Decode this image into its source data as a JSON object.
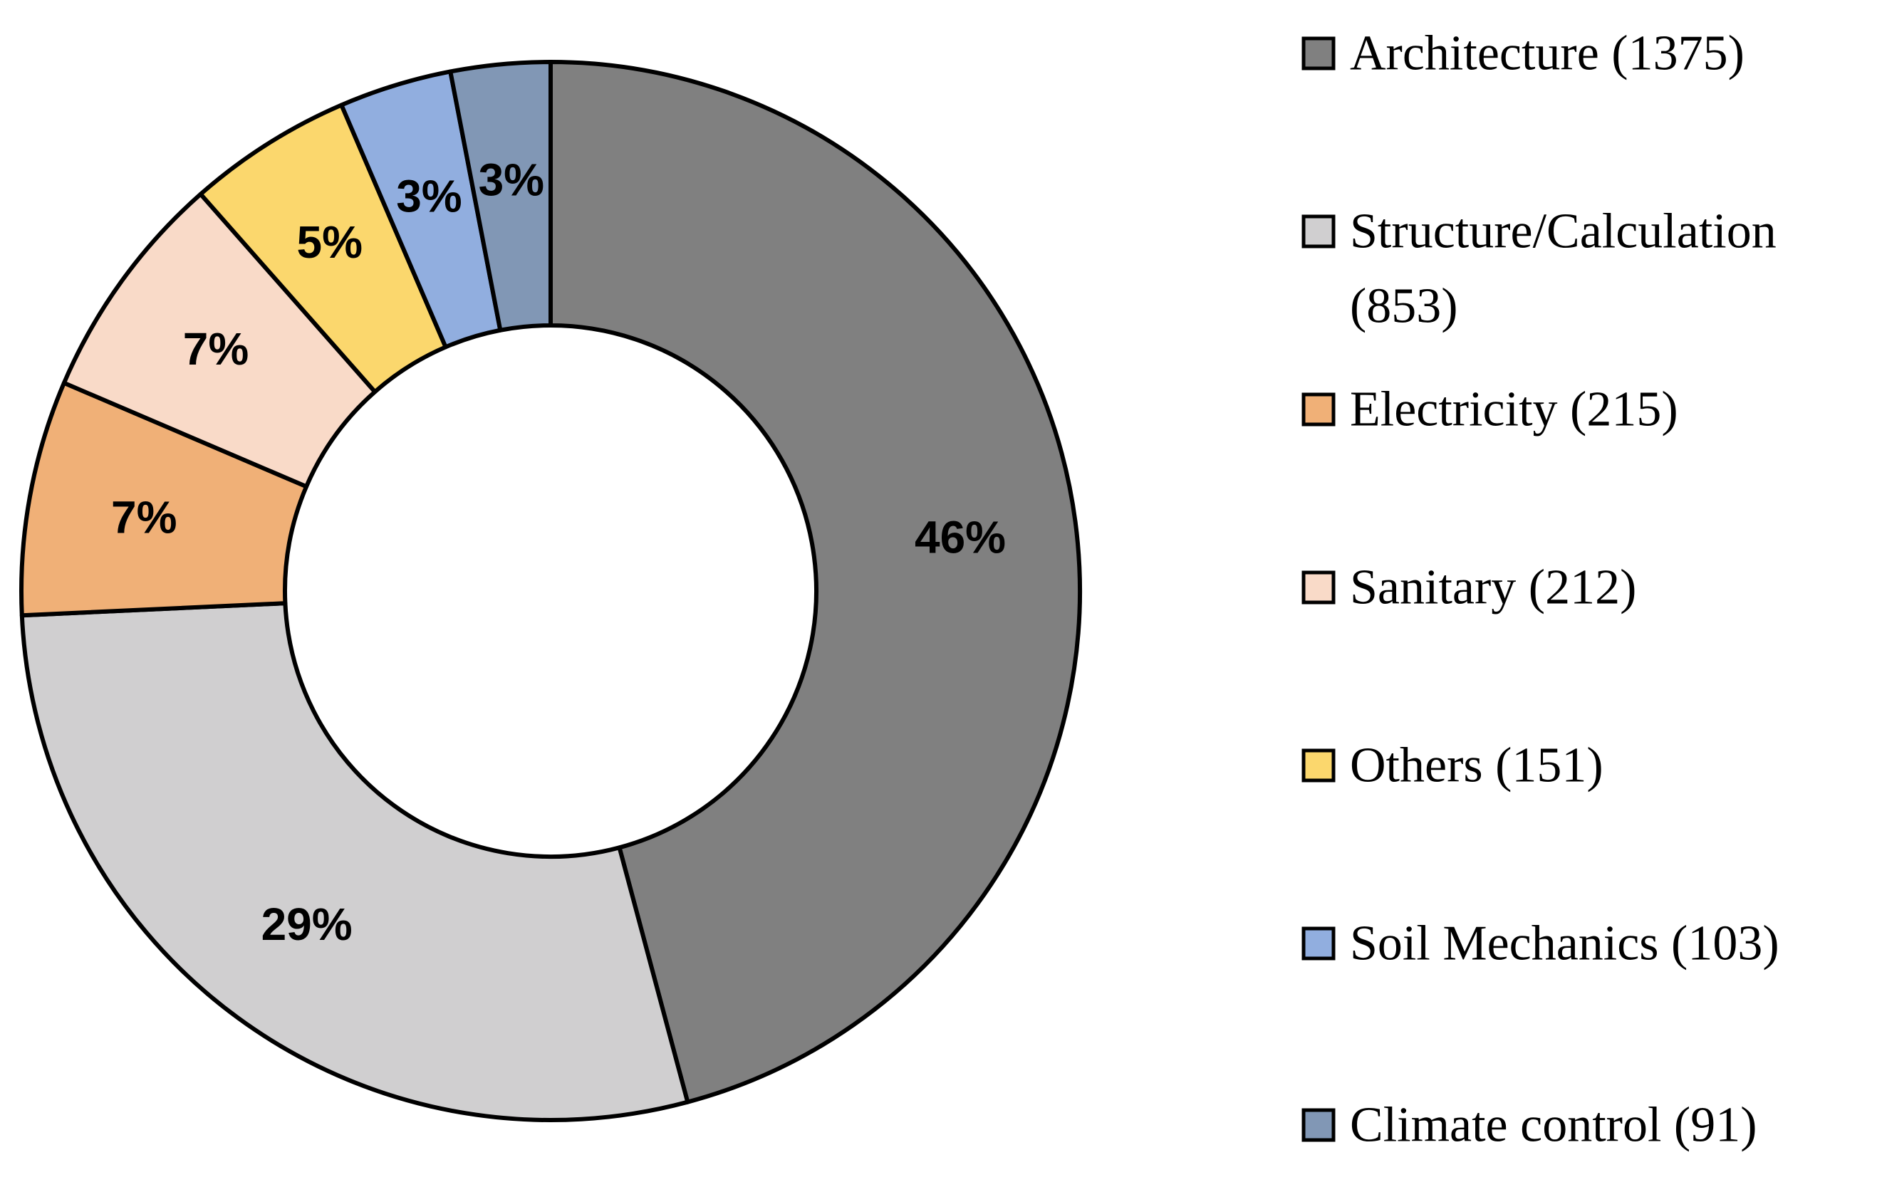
{
  "chart_data": {
    "type": "pie",
    "variant": "donut",
    "title": "",
    "categories": [
      "Architecture",
      "Structure/Calculation",
      "Electricity",
      "Sanitary",
      "Others",
      "Soil Mechanics",
      "Climate control"
    ],
    "values": [
      1375,
      853,
      215,
      212,
      151,
      103,
      91
    ],
    "percent_labels": [
      "46%",
      "29%",
      "7%",
      "7%",
      "5%",
      "3%",
      "3%"
    ],
    "legend": [
      {
        "lines": [
          "Architecture (1375)"
        ],
        "color": "#808080"
      },
      {
        "lines": [
          "Structure/Calculation",
          "(853)"
        ],
        "color": "#d0cfd0"
      },
      {
        "lines": [
          "Electricity (215)"
        ],
        "color": "#f0b077"
      },
      {
        "lines": [
          "Sanitary (212)"
        ],
        "color": "#f9dac8"
      },
      {
        "lines": [
          "Others (151)"
        ],
        "color": "#fbd76d"
      },
      {
        "lines": [
          "Soil Mechanics (103)"
        ],
        "color": "#91aedf"
      },
      {
        "lines": [
          "Climate control (91)"
        ],
        "color": "#8197b5"
      }
    ],
    "legend_position": "right"
  }
}
